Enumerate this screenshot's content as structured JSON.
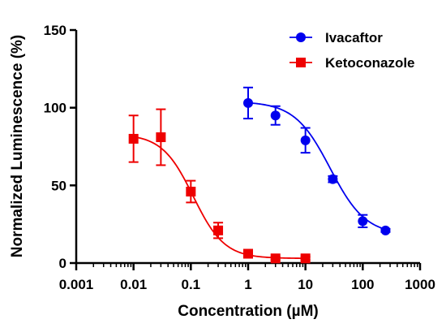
{
  "chart_data": {
    "type": "scatter",
    "title": "",
    "xlabel": "Concentration (µM)",
    "ylabel": "Normalized Luminescence (%)",
    "xscale": "log",
    "xlim": [
      0.001,
      1000
    ],
    "ylim": [
      0,
      150
    ],
    "x_ticks": [
      0.001,
      0.01,
      0.1,
      1,
      10,
      100,
      1000
    ],
    "x_tick_labels": [
      "0.001",
      "0.01",
      "0.1",
      "1",
      "10",
      "100",
      "1000"
    ],
    "y_ticks": [
      0,
      50,
      100,
      150
    ],
    "y_tick_labels": [
      "0",
      "50",
      "100",
      "150"
    ],
    "grid": false,
    "legend_position": "top-right",
    "series": [
      {
        "name": "Ivacaftor",
        "color": "#0000ee",
        "marker": "circle",
        "x": [
          1,
          3,
          10,
          30,
          100,
          250
        ],
        "y": [
          103,
          95,
          79,
          54,
          27,
          21
        ],
        "error": [
          10,
          6,
          8,
          2,
          4,
          1
        ],
        "fit": {
          "top": 104,
          "bottom": 18,
          "ic50": 27,
          "hill": 1.4
        }
      },
      {
        "name": "Ketoconazole",
        "color": "#ee0000",
        "marker": "square",
        "x": [
          0.01,
          0.03,
          0.1,
          0.3,
          1,
          3,
          10
        ],
        "y": [
          80,
          81,
          46,
          21,
          6,
          3,
          3
        ],
        "error": [
          15,
          18,
          7,
          5,
          1,
          1,
          1
        ],
        "fit": {
          "top": 83,
          "bottom": 3,
          "ic50": 0.11,
          "hill": 1.6
        }
      }
    ]
  }
}
